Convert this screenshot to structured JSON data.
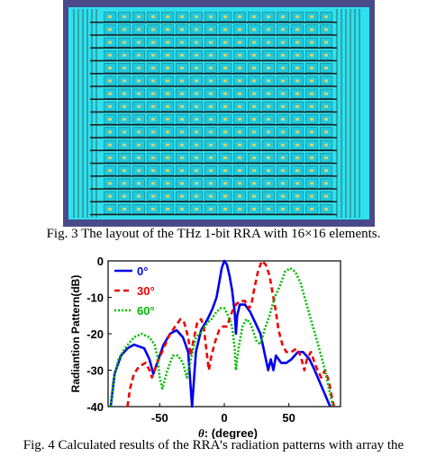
{
  "figure3": {
    "caption": "Fig. 3 The layout of the THz 1-bit RRA with 16×16 elements.",
    "grid": {
      "rows": 16,
      "cols": 16
    },
    "colors": {
      "substrate": "#2fe0ee",
      "cell": "#21c9dd",
      "line": "#1a1a1a",
      "frame": "#4a4a8a",
      "feed": "#d9d26a"
    }
  },
  "figure4": {
    "caption": "Fig. 4 Calculated results of the RRA’s radiation patterns with array the",
    "chart_data": {
      "type": "line",
      "xlabel_italic": "θ",
      "xlabel_rest": ": (degree)",
      "ylabel": "Radiantion Pattern(dB)",
      "xlim": [
        -90,
        90
      ],
      "ylim": [
        -40,
        0
      ],
      "xticks": [
        -50,
        0,
        50
      ],
      "yticks": [
        0,
        -10,
        -20,
        -30,
        -40
      ],
      "grid": false,
      "legend_position": "top-left",
      "series": [
        {
          "name": "0°",
          "color": "#0000ee",
          "dash": "none",
          "points": [
            [
              -88,
              -40
            ],
            [
              -85,
              -31
            ],
            [
              -80,
              -26
            ],
            [
              -75,
              -24
            ],
            [
              -70,
              -23
            ],
            [
              -62,
              -24
            ],
            [
              -58,
              -27
            ],
            [
              -55,
              -31
            ],
            [
              -52,
              -28
            ],
            [
              -47,
              -23
            ],
            [
              -42,
              -20
            ],
            [
              -37,
              -19
            ],
            [
              -32,
              -21
            ],
            [
              -28,
              -25
            ],
            [
              -25,
              -40
            ],
            [
              -22,
              -25
            ],
            [
              -18,
              -19
            ],
            [
              -13,
              -16
            ],
            [
              -9,
              -13
            ],
            [
              -6,
              -10
            ],
            [
              -4,
              -6
            ],
            [
              -2,
              -2
            ],
            [
              0,
              0
            ],
            [
              2,
              -1
            ],
            [
              4,
              -4
            ],
            [
              6,
              -8
            ],
            [
              8,
              -14
            ],
            [
              9,
              -20
            ],
            [
              10,
              -15
            ],
            [
              12,
              -12
            ],
            [
              16,
              -12
            ],
            [
              20,
              -14
            ],
            [
              24,
              -17
            ],
            [
              28,
              -20
            ],
            [
              31,
              -25
            ],
            [
              34,
              -30
            ],
            [
              36,
              -27
            ],
            [
              38,
              -30
            ],
            [
              40,
              -26
            ],
            [
              44,
              -28
            ],
            [
              48,
              -28
            ],
            [
              52,
              -27
            ],
            [
              57,
              -25
            ],
            [
              61,
              -25
            ],
            [
              66,
              -27
            ],
            [
              70,
              -30
            ],
            [
              76,
              -35
            ],
            [
              82,
              -40
            ]
          ]
        },
        {
          "name": "30°",
          "color": "#ee0000",
          "dash": "6,4",
          "points": [
            [
              -75,
              -40
            ],
            [
              -73,
              -35
            ],
            [
              -70,
              -31
            ],
            [
              -66,
              -29
            ],
            [
              -61,
              -28
            ],
            [
              -58,
              -30
            ],
            [
              -56,
              -32
            ],
            [
              -52,
              -28
            ],
            [
              -47,
              -24
            ],
            [
              -42,
              -20
            ],
            [
              -38,
              -18
            ],
            [
              -34,
              -16
            ],
            [
              -31,
              -17
            ],
            [
              -28,
              -21
            ],
            [
              -26,
              -26
            ],
            [
              -24,
              -22
            ],
            [
              -21,
              -17
            ],
            [
              -18,
              -16
            ],
            [
              -16,
              -18
            ],
            [
              -14,
              -24
            ],
            [
              -12,
              -30
            ],
            [
              -10,
              -26
            ],
            [
              -7,
              -22
            ],
            [
              -4,
              -19
            ],
            [
              -1,
              -18
            ],
            [
              2,
              -18
            ],
            [
              4,
              -16
            ],
            [
              6,
              -14
            ],
            [
              9,
              -12
            ],
            [
              12,
              -11
            ],
            [
              16,
              -11
            ],
            [
              19,
              -13
            ],
            [
              21,
              -12
            ],
            [
              23,
              -8
            ],
            [
              26,
              -3
            ],
            [
              29,
              0
            ],
            [
              32,
              -1
            ],
            [
              35,
              -4
            ],
            [
              37,
              -8
            ],
            [
              40,
              -14
            ],
            [
              42,
              -19
            ],
            [
              45,
              -23
            ],
            [
              48,
              -25
            ],
            [
              52,
              -25
            ],
            [
              56,
              -24
            ],
            [
              59,
              -26
            ],
            [
              62,
              -30
            ],
            [
              64,
              -27
            ],
            [
              67,
              -25
            ],
            [
              71,
              -29
            ],
            [
              75,
              -32
            ],
            [
              78,
              -30
            ],
            [
              81,
              -33
            ],
            [
              83,
              -37
            ],
            [
              85,
              -40
            ]
          ]
        },
        {
          "name": "60°",
          "color": "#00bb00",
          "dash": "2,2",
          "points": [
            [
              -88,
              -40
            ],
            [
              -86,
              -33
            ],
            [
              -82,
              -27
            ],
            [
              -77,
              -24
            ],
            [
              -70,
              -21
            ],
            [
              -64,
              -20
            ],
            [
              -58,
              -21
            ],
            [
              -54,
              -23
            ],
            [
              -52,
              -26
            ],
            [
              -50,
              -32
            ],
            [
              -48,
              -35
            ],
            [
              -44,
              -30
            ],
            [
              -40,
              -26
            ],
            [
              -36,
              -26
            ],
            [
              -32,
              -28
            ],
            [
              -29,
              -32
            ],
            [
              -26,
              -27
            ],
            [
              -22,
              -21
            ],
            [
              -17,
              -19
            ],
            [
              -13,
              -17
            ],
            [
              -10,
              -16
            ],
            [
              -6,
              -14
            ],
            [
              -3,
              -13
            ],
            [
              0,
              -13
            ],
            [
              3,
              -15
            ],
            [
              6,
              -18
            ],
            [
              8,
              -24
            ],
            [
              9,
              -30
            ],
            [
              11,
              -24
            ],
            [
              14,
              -18
            ],
            [
              17,
              -16
            ],
            [
              20,
              -17
            ],
            [
              23,
              -20
            ],
            [
              25,
              -22
            ],
            [
              28,
              -23
            ],
            [
              31,
              -19
            ],
            [
              35,
              -15
            ],
            [
              39,
              -10
            ],
            [
              43,
              -7
            ],
            [
              47,
              -3
            ],
            [
              51,
              -2
            ],
            [
              55,
              -3
            ],
            [
              59,
              -6
            ],
            [
              63,
              -11
            ],
            [
              67,
              -16
            ],
            [
              71,
              -21
            ],
            [
              75,
              -26
            ],
            [
              78,
              -30
            ],
            [
              81,
              -35
            ],
            [
              84,
              -40
            ]
          ]
        }
      ]
    }
  }
}
